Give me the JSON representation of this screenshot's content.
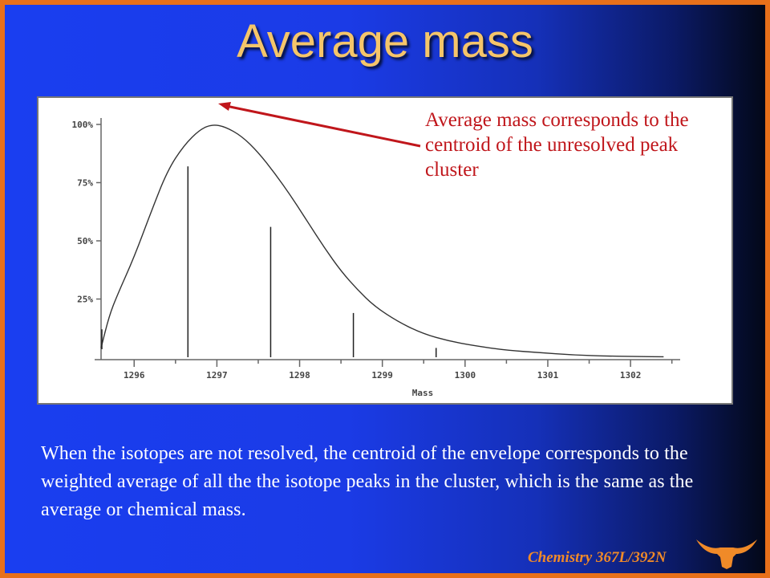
{
  "slide": {
    "title": "Average mass",
    "annotation": "Average mass corresponds to the centroid of the unresolved peak cluster",
    "caption": "When the isotopes are not resolved, the centroid of the envelope corresponds to the weighted average of all the the isotope peaks in the cluster, which is the same as the average or chemical mass.",
    "footer": "Chemistry 367L/392N",
    "logo_icon": "longhorn-icon",
    "colors": {
      "background": "#1b3be6",
      "frame": "#e8701a",
      "title": "#f5c56a",
      "annotation": "#c0161b",
      "caption": "#ffffff",
      "footer": "#f08a28"
    }
  },
  "chart_data": {
    "type": "line",
    "xlabel": "Mass",
    "ylabel": "",
    "x_ticks": [
      1296,
      1297,
      1298,
      1299,
      1300,
      1301,
      1302
    ],
    "x_tick_labels": [
      "1296",
      "1297",
      "1298",
      "1299",
      "1300",
      "1301",
      "1302"
    ],
    "y_ticks": [
      25,
      50,
      75,
      100
    ],
    "y_tick_labels": [
      "25%",
      "50%",
      "75%",
      "100%"
    ],
    "xlim": [
      1295.6,
      1302.6
    ],
    "ylim": [
      0,
      100
    ],
    "grid": false,
    "series": [
      {
        "style": "envelope",
        "x": [
          1295.6,
          1295.7,
          1295.8,
          1296.0,
          1296.2,
          1296.4,
          1296.6,
          1296.8,
          1296.95,
          1297.1,
          1297.3,
          1297.5,
          1297.7,
          1297.9,
          1298.1,
          1298.3,
          1298.5,
          1298.7,
          1298.9,
          1299.2,
          1299.5,
          1299.8,
          1300.1,
          1300.5,
          1300.9,
          1301.3,
          1301.7,
          1302.1,
          1302.4
        ],
        "y": [
          4,
          18,
          27,
          43,
          62,
          80,
          91,
          98,
          100,
          99,
          95,
          88,
          79,
          69,
          58,
          47,
          37,
          29,
          22,
          15,
          10,
          7,
          5,
          3,
          2,
          1,
          0.5,
          0.3,
          0.2
        ]
      },
      {
        "style": "stick",
        "x": [
          1296.65,
          1297.65,
          1298.65,
          1299.65
        ],
        "y": [
          82,
          56,
          19,
          4
        ]
      }
    ],
    "annotation": "Average mass corresponds to the centroid of the unresolved peak cluster"
  }
}
